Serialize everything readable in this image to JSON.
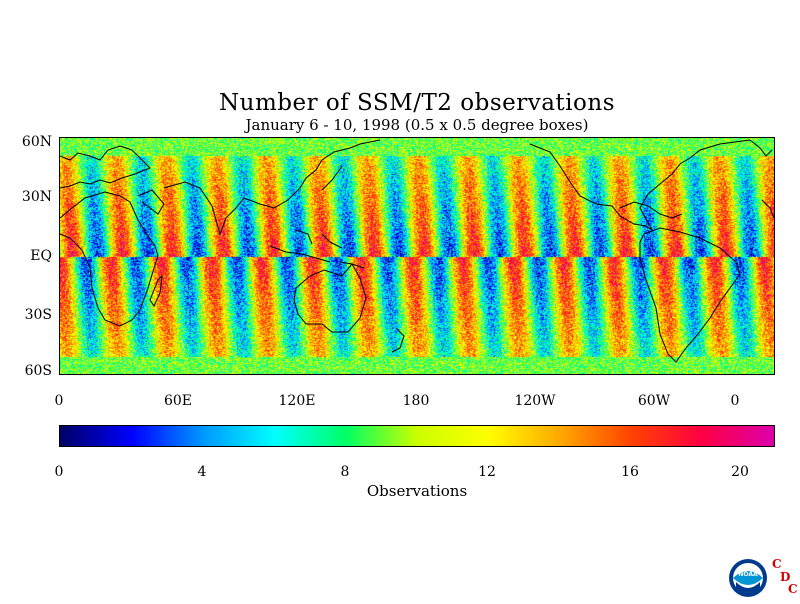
{
  "title": "Number of SSM/T2 observations",
  "subtitle": "January 6 - 10, 1998 (0.5 x 0.5 degree boxes)",
  "map": {
    "lat_labels": [
      "60N",
      "30N",
      "EQ",
      "30S",
      "60S"
    ],
    "lon_labels": [
      "0",
      "60E",
      "120E",
      "180",
      "120W",
      "60W",
      "0"
    ],
    "lat_range": [
      -60,
      60
    ],
    "lon_range": [
      0,
      360
    ],
    "field": "observation count per 0.5 x 0.5 degree box"
  },
  "colorbar": {
    "ticks": [
      "0",
      "4",
      "8",
      "12",
      "16",
      "20"
    ],
    "range": [
      0,
      20
    ],
    "label": "Observations",
    "colors": [
      "#000066",
      "#0000ff",
      "#0099ff",
      "#00ffff",
      "#00ff66",
      "#ccff00",
      "#ffff00",
      "#ffaa00",
      "#ff4400",
      "#ff0044",
      "#dd00aa"
    ]
  },
  "logo": {
    "name": "noaa-cdc-logo",
    "text": "NOAA",
    "letters": [
      "C",
      "D",
      "C"
    ]
  }
}
